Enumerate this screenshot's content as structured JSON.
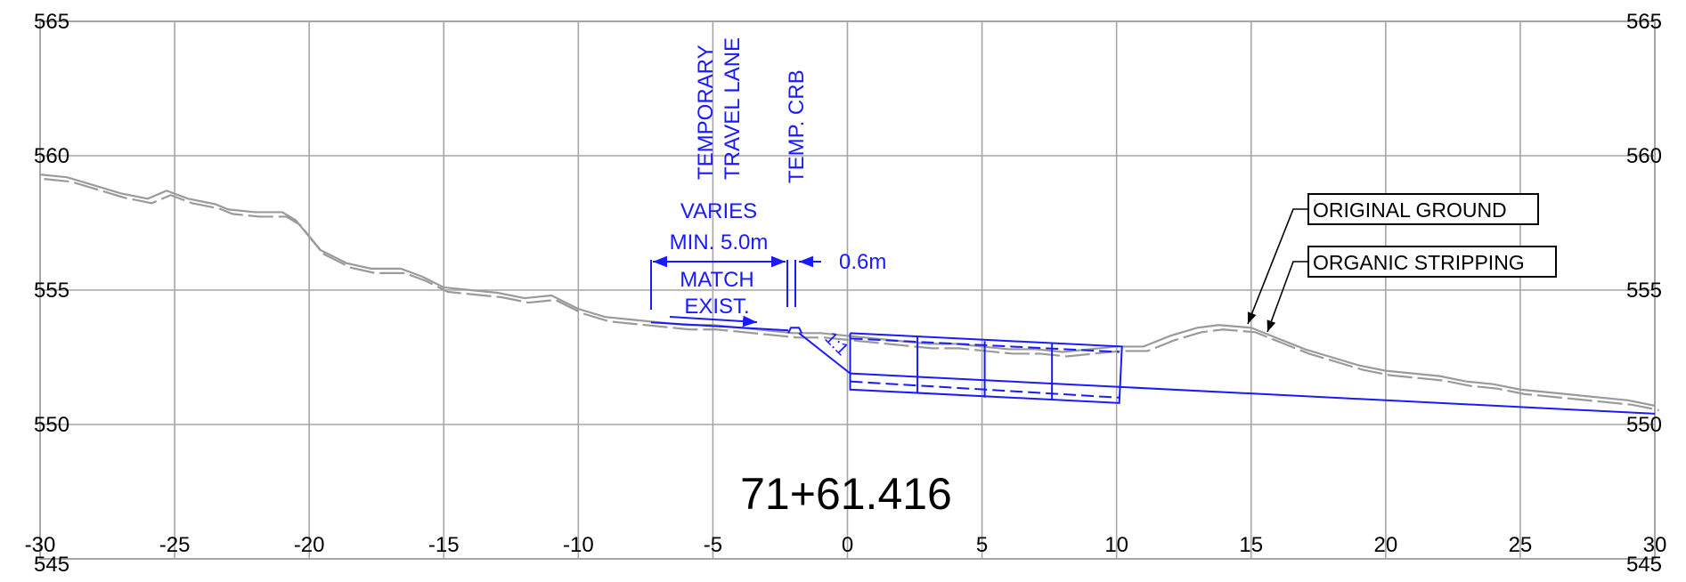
{
  "station_label": "71+61.416",
  "x_axis": {
    "min": -30,
    "max": 30,
    "step": 5,
    "tick_labels": [
      "-30",
      "-25",
      "-20",
      "-15",
      "-10",
      "-5",
      "0",
      "5",
      "10",
      "15",
      "20",
      "25",
      "30"
    ]
  },
  "y_axis": {
    "min": 545,
    "max": 565,
    "step": 5,
    "tick_labels": [
      "545",
      "550",
      "555",
      "560",
      "565"
    ]
  },
  "grid": true,
  "colors": {
    "grid": "#a6a6a6",
    "ground": "#9a9a9a",
    "design": "#1a1aff",
    "text": "#000000"
  },
  "labels": {
    "temporary_travel_lane_1": "TEMPORARY",
    "temporary_travel_lane_2": "TRAVEL LANE",
    "temp_crb": "TEMP. CRB",
    "varies": "VARIES",
    "min_width": "MIN. 5.0m",
    "match_1": "MATCH",
    "match_2": "EXIST.",
    "curb_offset": "0.6m",
    "slope": "1:1",
    "original_ground": "ORIGINAL GROUND",
    "organic_stripping": "ORGANIC STRIPPING"
  },
  "ground_profile": [
    [
      -30,
      559.3
    ],
    [
      -29,
      559.2
    ],
    [
      -28,
      558.9
    ],
    [
      -27,
      558.6
    ],
    [
      -26,
      558.4
    ],
    [
      -25.3,
      558.7
    ],
    [
      -24.5,
      558.4
    ],
    [
      -23.5,
      558.2
    ],
    [
      -23,
      558.0
    ],
    [
      -22,
      557.9
    ],
    [
      -21,
      557.9
    ],
    [
      -20.5,
      557.6
    ],
    [
      -19.6,
      556.5
    ],
    [
      -18.6,
      556.0
    ],
    [
      -17.7,
      555.8
    ],
    [
      -16.6,
      555.8
    ],
    [
      -15.8,
      555.5
    ],
    [
      -15,
      555.1
    ],
    [
      -14,
      555.0
    ],
    [
      -13,
      554.9
    ],
    [
      -12,
      554.7
    ],
    [
      -11,
      554.8
    ],
    [
      -10,
      554.3
    ],
    [
      -9,
      554.0
    ],
    [
      -8,
      553.9
    ],
    [
      -7,
      553.8
    ],
    [
      -6,
      553.7
    ],
    [
      -5,
      553.7
    ],
    [
      -4,
      553.6
    ],
    [
      -3,
      553.5
    ],
    [
      -2,
      553.4
    ],
    [
      -1,
      553.4
    ],
    [
      0,
      553.3
    ],
    [
      1,
      553.2
    ],
    [
      2,
      553.1
    ],
    [
      3,
      553.0
    ],
    [
      4,
      553.0
    ],
    [
      5,
      552.9
    ],
    [
      6,
      552.8
    ],
    [
      7,
      552.8
    ],
    [
      8,
      552.7
    ],
    [
      9,
      552.8
    ],
    [
      10,
      552.9
    ],
    [
      11,
      552.9
    ],
    [
      12,
      553.3
    ],
    [
      13,
      553.6
    ],
    [
      13.8,
      553.7
    ],
    [
      15,
      553.6
    ],
    [
      16,
      553.2
    ],
    [
      17,
      552.8
    ],
    [
      18,
      552.5
    ],
    [
      19,
      552.2
    ],
    [
      20,
      552.0
    ],
    [
      21,
      551.9
    ],
    [
      22,
      551.8
    ],
    [
      23,
      551.6
    ],
    [
      24,
      551.5
    ],
    [
      25,
      551.3
    ],
    [
      26,
      551.2
    ],
    [
      27,
      551.1
    ],
    [
      28,
      551.0
    ],
    [
      29,
      550.9
    ],
    [
      30,
      550.7
    ]
  ],
  "design": {
    "lane": [
      [
        -7.3,
        553.8
      ],
      [
        -2.2,
        553.5
      ]
    ],
    "curb": [
      [
        -2.2,
        553.4
      ],
      [
        -2.1,
        553.6
      ],
      [
        -1.8,
        553.6
      ],
      [
        -1.7,
        553.4
      ]
    ],
    "slope": [
      [
        -1.8,
        553.4
      ],
      [
        0.1,
        551.9
      ]
    ],
    "box": [
      [
        0.1,
        553.4
      ],
      [
        10.2,
        552.9
      ],
      [
        10.1,
        550.8
      ],
      [
        0.1,
        551.3
      ]
    ],
    "box_dashed_top": [
      [
        0.1,
        553.2
      ],
      [
        10.1,
        552.7
      ]
    ],
    "box_dashed_bottom": [
      [
        0.1,
        551.6
      ],
      [
        10.1,
        551.0
      ]
    ],
    "box_dividers": [
      [
        2.6,
        553.3,
        2.6,
        551.2
      ],
      [
        5.1,
        553.1,
        5.1,
        551.0
      ],
      [
        7.6,
        553.0,
        7.6,
        550.9
      ]
    ],
    "drain_line": [
      [
        0.1,
        551.9
      ],
      [
        30,
        550.4
      ]
    ]
  }
}
